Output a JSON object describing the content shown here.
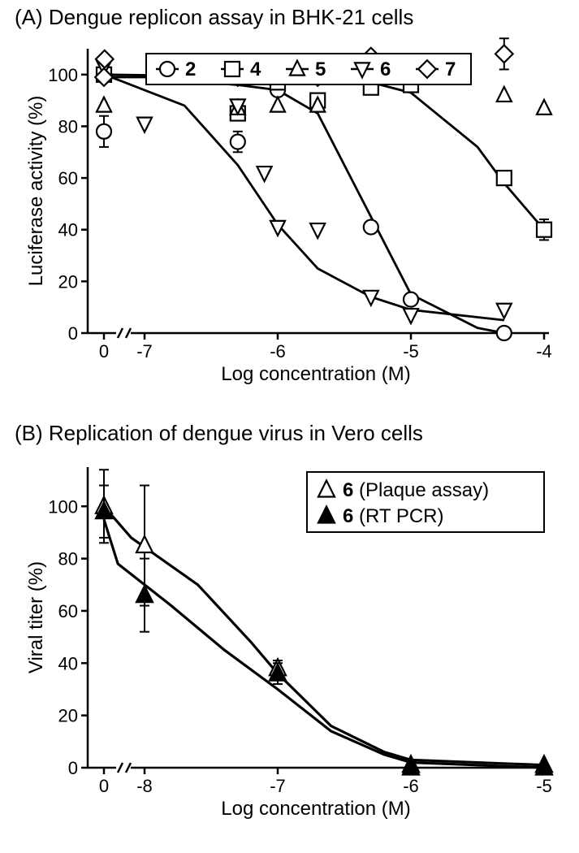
{
  "panelA": {
    "title": "(A) Dengue replicon assay in BHK-21 cells",
    "title_fontsize": 26,
    "xlabel": "Log concentration (M)",
    "ylabel": "Luciferase activity (%)",
    "label_fontsize": 24,
    "tick_fontsize": 22,
    "background_color": "#ffffff",
    "axis_color": "#000000",
    "axis_width": 2.5,
    "x_ticks": [
      0,
      -7,
      -6,
      -5,
      -4
    ],
    "y_ticks": [
      0,
      20,
      40,
      60,
      80,
      100
    ],
    "ylim": [
      0,
      110
    ],
    "x_break_between": [
      0,
      -7
    ],
    "marker_size": 9,
    "marker_stroke": 2.2,
    "line_width": 2.8,
    "legend": {
      "items": [
        {
          "marker": "circle",
          "label": "2",
          "bold": true
        },
        {
          "marker": "square",
          "label": "4",
          "bold": true
        },
        {
          "marker": "triangle-up",
          "label": "5",
          "bold": true
        },
        {
          "marker": "triangle-down",
          "label": "6",
          "bold": true
        },
        {
          "marker": "diamond",
          "label": "7",
          "bold": true
        }
      ]
    },
    "series": [
      {
        "name": "2",
        "marker": "circle",
        "has_curve": true,
        "curve": [
          {
            "x": 0,
            "y": 99
          },
          {
            "x": -7,
            "y": 99
          },
          {
            "x": -6.3,
            "y": 96
          },
          {
            "x": -6,
            "y": 94
          },
          {
            "x": -5.7,
            "y": 85
          },
          {
            "x": -5.3,
            "y": 45
          },
          {
            "x": -5,
            "y": 15
          },
          {
            "x": -4.5,
            "y": 2
          },
          {
            "x": -4.3,
            "y": 0
          }
        ],
        "points": [
          {
            "x": 0,
            "y": 78,
            "err": 6
          },
          {
            "x": -6.3,
            "y": 74,
            "err": 4
          },
          {
            "x": -6,
            "y": 94
          },
          {
            "x": -5.7,
            "y": 101
          },
          {
            "x": -5.3,
            "y": 41
          },
          {
            "x": -5,
            "y": 13
          },
          {
            "x": -4.3,
            "y": 0
          }
        ]
      },
      {
        "name": "4",
        "marker": "square",
        "has_curve": true,
        "curve": [
          {
            "x": 0,
            "y": 100
          },
          {
            "x": -6,
            "y": 99
          },
          {
            "x": -5.3,
            "y": 97
          },
          {
            "x": -5,
            "y": 93
          },
          {
            "x": -4.5,
            "y": 72
          },
          {
            "x": -4.3,
            "y": 58
          },
          {
            "x": -4,
            "y": 40
          }
        ],
        "points": [
          {
            "x": 0,
            "y": 100
          },
          {
            "x": -6.3,
            "y": 85
          },
          {
            "x": -6,
            "y": 97
          },
          {
            "x": -5.7,
            "y": 90
          },
          {
            "x": -5.3,
            "y": 95
          },
          {
            "x": -5,
            "y": 96
          },
          {
            "x": -4.3,
            "y": 60
          },
          {
            "x": -4,
            "y": 40,
            "err": 4
          }
        ]
      },
      {
        "name": "5",
        "marker": "triangle-up",
        "has_curve": false,
        "points": [
          {
            "x": 0,
            "y": 88
          },
          {
            "x": -6.3,
            "y": 87
          },
          {
            "x": -6,
            "y": 88
          },
          {
            "x": -5.7,
            "y": 88
          },
          {
            "x": -5.3,
            "y": 100
          },
          {
            "x": -5,
            "y": 101
          },
          {
            "x": -4.3,
            "y": 92
          },
          {
            "x": -4,
            "y": 87
          }
        ]
      },
      {
        "name": "6",
        "marker": "triangle-down",
        "has_curve": true,
        "curve": [
          {
            "x": 0,
            "y": 100
          },
          {
            "x": -7.2,
            "y": 98
          },
          {
            "x": -6.7,
            "y": 88
          },
          {
            "x": -6.3,
            "y": 65
          },
          {
            "x": -6,
            "y": 42
          },
          {
            "x": -5.7,
            "y": 25
          },
          {
            "x": -5.3,
            "y": 14
          },
          {
            "x": -5,
            "y": 9
          },
          {
            "x": -4.3,
            "y": 5
          }
        ],
        "points": [
          {
            "x": 0,
            "y": 103,
            "err": 4
          },
          {
            "x": -7,
            "y": 81
          },
          {
            "x": -6.3,
            "y": 88
          },
          {
            "x": -6.1,
            "y": 62
          },
          {
            "x": -6,
            "y": 41
          },
          {
            "x": -5.7,
            "y": 40
          },
          {
            "x": -5.3,
            "y": 14
          },
          {
            "x": -5,
            "y": 7
          },
          {
            "x": -4.3,
            "y": 9
          }
        ]
      },
      {
        "name": "7",
        "marker": "diamond",
        "has_curve": false,
        "points": [
          {
            "x": 0,
            "y": 99
          },
          {
            "x": -7.3,
            "y": 106
          },
          {
            "x": -6.3,
            "y": 99
          },
          {
            "x": -6,
            "y": 103,
            "err": 5
          },
          {
            "x": -5.7,
            "y": 99
          },
          {
            "x": -5.3,
            "y": 107
          },
          {
            "x": -5,
            "y": 101
          },
          {
            "x": -4.3,
            "y": 108,
            "err": 6
          }
        ]
      }
    ]
  },
  "panelB": {
    "title": "(B) Replication of dengue virus in Vero cells",
    "title_fontsize": 26,
    "xlabel": "Log concentration (M)",
    "ylabel": "Viral titer (%)",
    "label_fontsize": 24,
    "tick_fontsize": 22,
    "background_color": "#ffffff",
    "axis_color": "#000000",
    "axis_width": 2.5,
    "x_ticks": [
      0,
      -8,
      -7,
      -6,
      -5
    ],
    "y_ticks": [
      0,
      20,
      40,
      60,
      80,
      100
    ],
    "ylim": [
      0,
      115
    ],
    "x_break_between": [
      0,
      -8
    ],
    "marker_size": 10,
    "marker_stroke": 2.2,
    "line_width": 3.2,
    "legend": {
      "items": [
        {
          "marker": "triangle-up",
          "fill": "open",
          "label_prefix": "6",
          "label_suffix": " (Plaque assay)"
        },
        {
          "marker": "triangle-up",
          "fill": "solid",
          "label_prefix": "6",
          "label_suffix": " (RT PCR)"
        }
      ]
    },
    "series": [
      {
        "name": "6-plaque",
        "marker": "triangle-up",
        "fill": "open",
        "has_curve": true,
        "curve": [
          {
            "x": 0,
            "y": 100
          },
          {
            "x": -8.1,
            "y": 88
          },
          {
            "x": -7.6,
            "y": 70
          },
          {
            "x": -7.2,
            "y": 48
          },
          {
            "x": -7,
            "y": 36
          },
          {
            "x": -6.6,
            "y": 16
          },
          {
            "x": -6.2,
            "y": 6
          },
          {
            "x": -6,
            "y": 3
          },
          {
            "x": -5,
            "y": 1
          }
        ],
        "points": [
          {
            "x": 0,
            "y": 100,
            "err": 14
          },
          {
            "x": -8,
            "y": 85,
            "err": 23
          },
          {
            "x": -7,
            "y": 38,
            "err": 3
          },
          {
            "x": -6,
            "y": 1
          },
          {
            "x": -5,
            "y": 1
          }
        ]
      },
      {
        "name": "6-rtpcr",
        "marker": "triangle-up",
        "fill": "solid",
        "has_curve": true,
        "curve": [
          {
            "x": 0,
            "y": 95
          },
          {
            "x": -8.2,
            "y": 78
          },
          {
            "x": -7.8,
            "y": 62
          },
          {
            "x": -7.4,
            "y": 45
          },
          {
            "x": -7,
            "y": 30
          },
          {
            "x": -6.6,
            "y": 14
          },
          {
            "x": -6.2,
            "y": 5
          },
          {
            "x": -6,
            "y": 2
          },
          {
            "x": -5,
            "y": 0
          }
        ],
        "points": [
          {
            "x": 0,
            "y": 98,
            "err": 10
          },
          {
            "x": -8,
            "y": 66,
            "err": 14
          },
          {
            "x": -7,
            "y": 36,
            "err": 4
          },
          {
            "x": -6,
            "y": 0
          },
          {
            "x": -5,
            "y": 0
          }
        ]
      }
    ]
  }
}
